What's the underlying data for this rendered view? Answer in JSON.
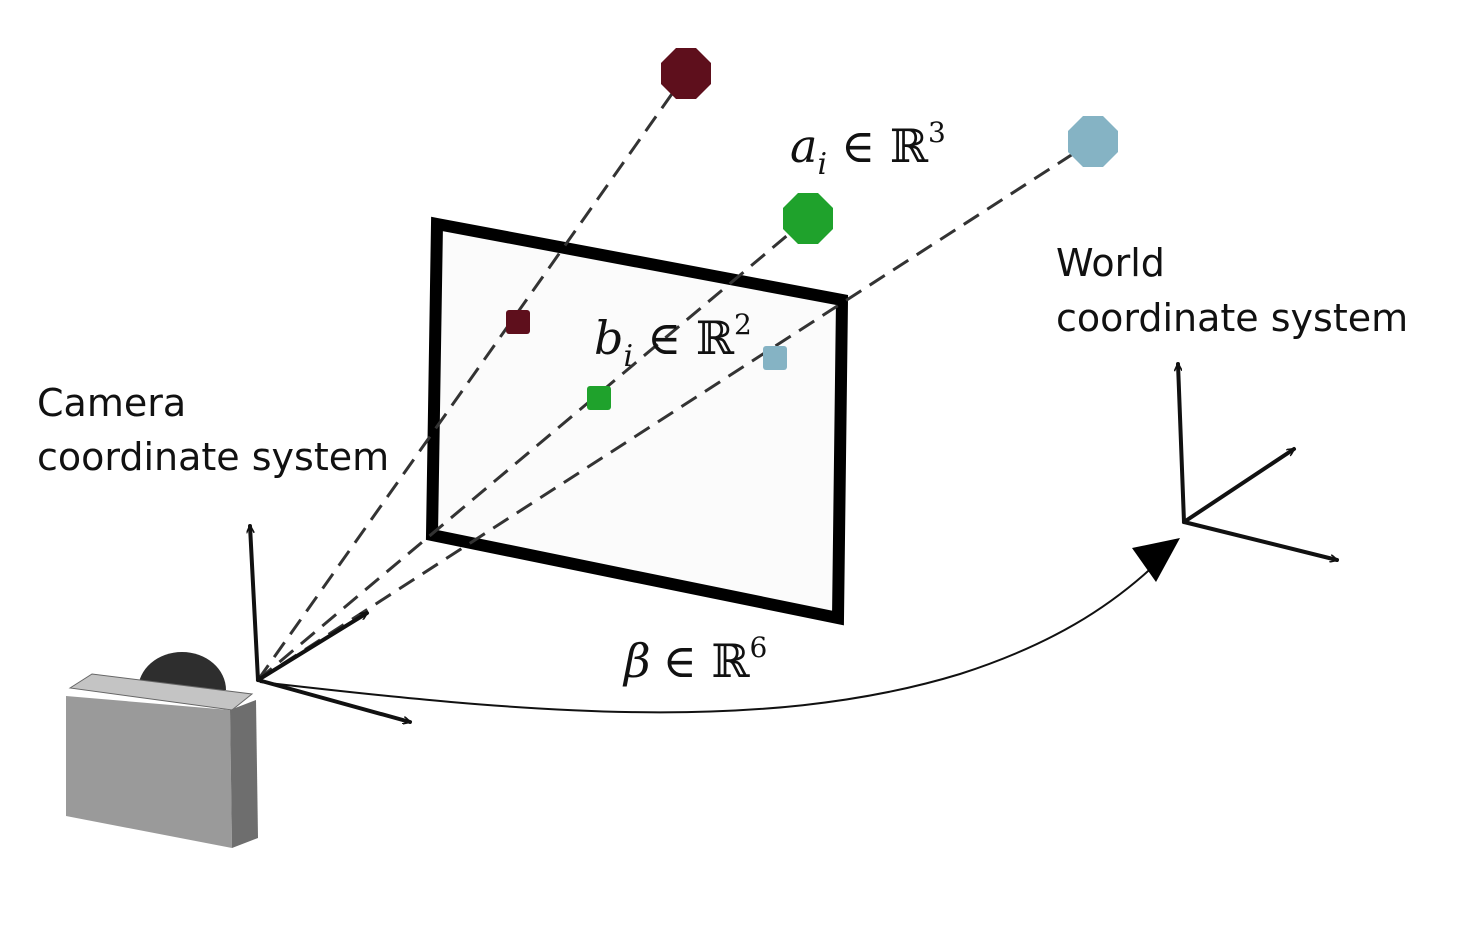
{
  "labels": {
    "camera_line1": "Camera",
    "camera_line2": "coordinate system",
    "world_line1": "World",
    "world_line2": "coordinate system"
  },
  "math": {
    "a": {
      "symbol": "a",
      "subscript": "i",
      "set": "∈ ℝ",
      "exponent": "3"
    },
    "b": {
      "symbol": "b",
      "subscript": "i",
      "set": "∈ ℝ",
      "exponent": "2"
    },
    "beta": {
      "symbol": "β",
      "set": "∈ ℝ",
      "exponent": "6"
    }
  },
  "colors": {
    "point_dark_red": "#5e0f1c",
    "point_green": "#1fa22c",
    "point_light_blue": "#85b3c4",
    "camera_body": "#9a9a9a",
    "camera_lens": "#2e2e2e",
    "ink": "#111111"
  }
}
